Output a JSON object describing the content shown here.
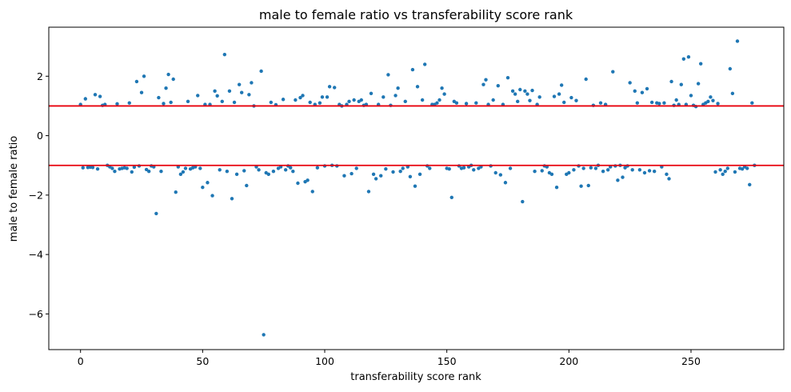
{
  "chart_data": {
    "type": "scatter",
    "title": "male to female ratio vs transferability score rank",
    "xlabel": "transferability score rank",
    "ylabel": "male to female ratio",
    "xlim": [
      -13,
      288
    ],
    "ylim": [
      -7.2,
      3.65
    ],
    "xticks": [
      0,
      50,
      100,
      150,
      200,
      250
    ],
    "yticks": [
      -6,
      -4,
      -2,
      0,
      2
    ],
    "xtick_labels": [
      "0",
      "50",
      "100",
      "150",
      "200",
      "250"
    ],
    "ytick_labels": [
      "−6",
      "−4",
      "−2",
      "0",
      "2"
    ],
    "grid": false,
    "point_color": "#1f77b4",
    "reference_lines": [
      {
        "y": 1,
        "color": "#e8000b"
      },
      {
        "y": -1,
        "color": "#e8000b"
      }
    ],
    "points": [
      [
        0,
        1.05
      ],
      [
        1,
        -1.08
      ],
      [
        2,
        1.24
      ],
      [
        3,
        -1.07
      ],
      [
        4,
        -1.06
      ],
      [
        5,
        -1.07
      ],
      [
        6,
        1.38
      ],
      [
        7,
        -1.12
      ],
      [
        8,
        1.32
      ],
      [
        9,
        1.02
      ],
      [
        10,
        1.05
      ],
      [
        11,
        -1.0
      ],
      [
        12,
        -1.05
      ],
      [
        13,
        -1.1
      ],
      [
        14,
        -1.2
      ],
      [
        15,
        1.07
      ],
      [
        16,
        -1.12
      ],
      [
        17,
        -1.1
      ],
      [
        18,
        -1.08
      ],
      [
        19,
        -1.1
      ],
      [
        20,
        1.1
      ],
      [
        21,
        -1.22
      ],
      [
        22,
        -1.06
      ],
      [
        23,
        1.82
      ],
      [
        24,
        -1.02
      ],
      [
        25,
        1.45
      ],
      [
        26,
        2.0
      ],
      [
        27,
        -1.14
      ],
      [
        28,
        -1.2
      ],
      [
        29,
        -1.02
      ],
      [
        30,
        -1.05
      ],
      [
        31,
        -2.62
      ],
      [
        32,
        1.28
      ],
      [
        33,
        -1.2
      ],
      [
        34,
        1.08
      ],
      [
        35,
        1.6
      ],
      [
        36,
        2.06
      ],
      [
        37,
        1.12
      ],
      [
        38,
        1.9
      ],
      [
        39,
        -1.9
      ],
      [
        40,
        -1.05
      ],
      [
        41,
        -1.3
      ],
      [
        42,
        -1.22
      ],
      [
        43,
        -1.1
      ],
      [
        44,
        1.15
      ],
      [
        45,
        -1.12
      ],
      [
        46,
        -1.08
      ],
      [
        47,
        -1.05
      ],
      [
        48,
        1.35
      ],
      [
        49,
        -1.1
      ],
      [
        50,
        -1.74
      ],
      [
        51,
        1.05
      ],
      [
        52,
        -1.58
      ],
      [
        53,
        1.05
      ],
      [
        54,
        -2.02
      ],
      [
        55,
        1.5
      ],
      [
        56,
        1.34
      ],
      [
        57,
        -1.15
      ],
      [
        58,
        1.15
      ],
      [
        59,
        2.73
      ],
      [
        60,
        -1.2
      ],
      [
        61,
        1.5
      ],
      [
        62,
        -2.12
      ],
      [
        63,
        1.12
      ],
      [
        64,
        -1.3
      ],
      [
        65,
        1.72
      ],
      [
        66,
        1.45
      ],
      [
        67,
        -1.18
      ],
      [
        68,
        -1.68
      ],
      [
        69,
        1.38
      ],
      [
        70,
        1.78
      ],
      [
        71,
        1.0
      ],
      [
        72,
        -1.05
      ],
      [
        73,
        -1.15
      ],
      [
        74,
        2.17
      ],
      [
        75,
        -6.7
      ],
      [
        76,
        -1.25
      ],
      [
        77,
        -1.3
      ],
      [
        78,
        1.12
      ],
      [
        79,
        -1.2
      ],
      [
        80,
        1.04
      ],
      [
        81,
        -1.1
      ],
      [
        82,
        -1.05
      ],
      [
        83,
        1.22
      ],
      [
        84,
        -1.15
      ],
      [
        85,
        -1.02
      ],
      [
        86,
        -1.08
      ],
      [
        87,
        -1.2
      ],
      [
        88,
        1.2
      ],
      [
        89,
        -1.6
      ],
      [
        90,
        1.28
      ],
      [
        91,
        1.35
      ],
      [
        92,
        -1.55
      ],
      [
        93,
        -1.5
      ],
      [
        94,
        1.12
      ],
      [
        95,
        -1.88
      ],
      [
        96,
        1.05
      ],
      [
        97,
        -1.08
      ],
      [
        98,
        1.1
      ],
      [
        99,
        1.3
      ],
      [
        100,
        -1.02
      ],
      [
        101,
        1.3
      ],
      [
        102,
        1.65
      ],
      [
        103,
        -1.0
      ],
      [
        104,
        1.62
      ],
      [
        105,
        -1.02
      ],
      [
        106,
        1.05
      ],
      [
        107,
        1.0
      ],
      [
        108,
        -1.35
      ],
      [
        109,
        1.05
      ],
      [
        110,
        1.15
      ],
      [
        111,
        -1.28
      ],
      [
        112,
        1.2
      ],
      [
        113,
        -1.1
      ],
      [
        114,
        1.15
      ],
      [
        115,
        1.2
      ],
      [
        116,
        1.02
      ],
      [
        117,
        1.05
      ],
      [
        118,
        -1.88
      ],
      [
        119,
        1.42
      ],
      [
        120,
        -1.3
      ],
      [
        121,
        -1.45
      ],
      [
        122,
        1.05
      ],
      [
        123,
        -1.35
      ],
      [
        124,
        1.3
      ],
      [
        125,
        -1.12
      ],
      [
        126,
        2.05
      ],
      [
        127,
        1.02
      ],
      [
        128,
        -1.22
      ],
      [
        129,
        1.35
      ],
      [
        130,
        1.6
      ],
      [
        131,
        -1.2
      ],
      [
        132,
        -1.1
      ],
      [
        133,
        1.15
      ],
      [
        134,
        -1.05
      ],
      [
        135,
        -1.38
      ],
      [
        136,
        2.22
      ],
      [
        137,
        -1.7
      ],
      [
        138,
        1.65
      ],
      [
        139,
        -1.3
      ],
      [
        140,
        1.2
      ],
      [
        141,
        2.4
      ],
      [
        142,
        -1.02
      ],
      [
        143,
        -1.1
      ],
      [
        144,
        1.05
      ],
      [
        145,
        1.05
      ],
      [
        146,
        1.1
      ],
      [
        147,
        1.2
      ],
      [
        148,
        1.6
      ],
      [
        149,
        1.4
      ],
      [
        150,
        -1.1
      ],
      [
        151,
        -1.12
      ],
      [
        152,
        -2.08
      ],
      [
        153,
        1.15
      ],
      [
        154,
        1.1
      ],
      [
        155,
        -1.02
      ],
      [
        156,
        -1.1
      ],
      [
        157,
        -1.08
      ],
      [
        158,
        1.08
      ],
      [
        159,
        -1.05
      ],
      [
        160,
        -1.0
      ],
      [
        161,
        -1.15
      ],
      [
        162,
        1.1
      ],
      [
        163,
        -1.1
      ],
      [
        164,
        -1.05
      ],
      [
        165,
        1.72
      ],
      [
        166,
        1.88
      ],
      [
        167,
        1.05
      ],
      [
        168,
        -1.02
      ],
      [
        169,
        1.2
      ],
      [
        170,
        -1.25
      ],
      [
        171,
        1.68
      ],
      [
        172,
        -1.32
      ],
      [
        173,
        1.05
      ],
      [
        174,
        -1.58
      ],
      [
        175,
        1.95
      ],
      [
        176,
        -1.1
      ],
      [
        177,
        1.5
      ],
      [
        178,
        1.4
      ],
      [
        179,
        1.15
      ],
      [
        180,
        1.55
      ],
      [
        181,
        -2.22
      ],
      [
        182,
        1.5
      ],
      [
        183,
        1.4
      ],
      [
        184,
        1.18
      ],
      [
        185,
        1.52
      ],
      [
        186,
        -1.2
      ],
      [
        187,
        1.05
      ],
      [
        188,
        1.3
      ],
      [
        189,
        -1.18
      ],
      [
        190,
        -1.02
      ],
      [
        191,
        -1.05
      ],
      [
        192,
        -1.25
      ],
      [
        193,
        -1.3
      ],
      [
        194,
        1.32
      ],
      [
        195,
        -1.74
      ],
      [
        196,
        1.4
      ],
      [
        197,
        1.7
      ],
      [
        198,
        1.12
      ],
      [
        199,
        -1.3
      ],
      [
        200,
        -1.25
      ],
      [
        201,
        1.28
      ],
      [
        202,
        -1.15
      ],
      [
        203,
        1.18
      ],
      [
        204,
        -1.02
      ],
      [
        205,
        -1.7
      ],
      [
        206,
        -1.1
      ],
      [
        207,
        1.9
      ],
      [
        208,
        -1.68
      ],
      [
        209,
        -1.08
      ],
      [
        210,
        1.02
      ],
      [
        211,
        -1.1
      ],
      [
        212,
        -1.0
      ],
      [
        213,
        1.1
      ],
      [
        214,
        -1.2
      ],
      [
        215,
        1.05
      ],
      [
        216,
        -1.15
      ],
      [
        217,
        -1.05
      ],
      [
        218,
        2.15
      ],
      [
        219,
        -1.02
      ],
      [
        220,
        -1.5
      ],
      [
        221,
        -1.0
      ],
      [
        222,
        -1.4
      ],
      [
        223,
        -1.08
      ],
      [
        224,
        -1.02
      ],
      [
        225,
        1.78
      ],
      [
        226,
        -1.15
      ],
      [
        227,
        1.5
      ],
      [
        228,
        1.1
      ],
      [
        229,
        -1.15
      ],
      [
        230,
        1.45
      ],
      [
        231,
        -1.25
      ],
      [
        232,
        1.58
      ],
      [
        233,
        -1.18
      ],
      [
        234,
        1.12
      ],
      [
        235,
        -1.2
      ],
      [
        236,
        1.1
      ],
      [
        237,
        1.08
      ],
      [
        238,
        -1.05
      ],
      [
        239,
        1.1
      ],
      [
        240,
        -1.3
      ],
      [
        241,
        -1.45
      ],
      [
        242,
        1.82
      ],
      [
        243,
        1.02
      ],
      [
        244,
        1.2
      ],
      [
        245,
        1.05
      ],
      [
        246,
        1.72
      ],
      [
        247,
        2.58
      ],
      [
        248,
        1.05
      ],
      [
        249,
        2.65
      ],
      [
        250,
        1.35
      ],
      [
        251,
        1.02
      ],
      [
        252,
        0.98
      ],
      [
        253,
        1.75
      ],
      [
        254,
        2.42
      ],
      [
        255,
        1.05
      ],
      [
        256,
        1.1
      ],
      [
        257,
        1.15
      ],
      [
        258,
        1.3
      ],
      [
        259,
        1.18
      ],
      [
        260,
        -1.22
      ],
      [
        261,
        1.08
      ],
      [
        262,
        -1.15
      ],
      [
        263,
        -1.3
      ],
      [
        264,
        -1.2
      ],
      [
        265,
        -1.1
      ],
      [
        266,
        2.25
      ],
      [
        267,
        1.42
      ],
      [
        268,
        -1.22
      ],
      [
        269,
        3.18
      ],
      [
        270,
        -1.1
      ],
      [
        271,
        -1.12
      ],
      [
        272,
        -1.05
      ],
      [
        273,
        -1.1
      ],
      [
        274,
        -1.65
      ],
      [
        275,
        1.1
      ],
      [
        276,
        -1.0
      ]
    ]
  }
}
